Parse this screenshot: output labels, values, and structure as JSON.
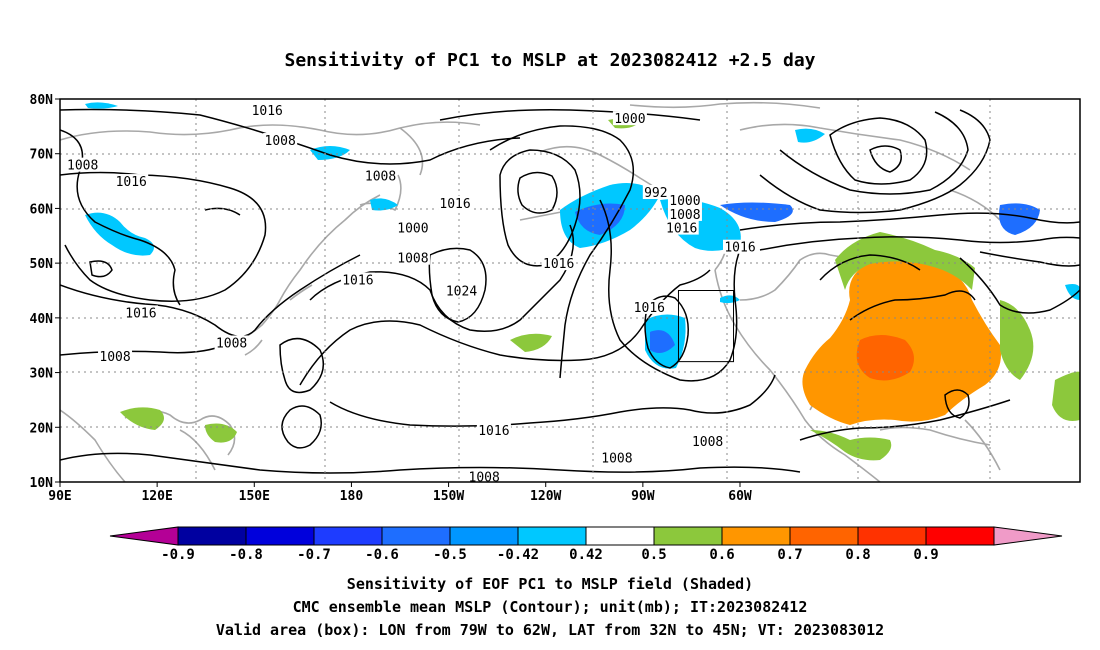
{
  "title": "Sensitivity of PC1 to MSLP at 2023082412 +2.5 day",
  "lon_ticks": [
    "90E",
    "120E",
    "150E",
    "180",
    "150W",
    "120W",
    "90W",
    "60W"
  ],
  "lat_ticks": [
    "80N",
    "70N",
    "60N",
    "50N",
    "40N",
    "30N",
    "20N",
    "10N"
  ],
  "colorbar": {
    "labels": [
      "-0.9",
      "-0.8",
      "-0.7",
      "-0.6",
      "-0.5",
      "-0.42",
      "0.42",
      "0.5",
      "0.6",
      "0.7",
      "0.8",
      "0.9"
    ],
    "colors": [
      "#b40096",
      "#0000a0",
      "#0000dc",
      "#1e3cff",
      "#1e6eff",
      "#0096ff",
      "#00c8ff",
      "#ffffff",
      "#8cc83c",
      "#ff9600",
      "#ff6400",
      "#ff3200",
      "#ff0000",
      "#f09bc8"
    ]
  },
  "contour_labels": [
    {
      "text": "1016",
      "lon": 154,
      "lat": 78
    },
    {
      "text": "1000",
      "lon": -94,
      "lat": 76.5
    },
    {
      "text": "1008",
      "lon": 158,
      "lat": 72.5
    },
    {
      "text": "1008",
      "lon": 97,
      "lat": 68
    },
    {
      "text": "1008",
      "lon": -171,
      "lat": 66
    },
    {
      "text": "1016",
      "lon": 112,
      "lat": 65
    },
    {
      "text": "992",
      "lon": -86,
      "lat": 63
    },
    {
      "text": "1000",
      "lon": -77,
      "lat": 61.5
    },
    {
      "text": "1008",
      "lon": -77,
      "lat": 59
    },
    {
      "text": "1016",
      "lon": -148,
      "lat": 61
    },
    {
      "text": "1000",
      "lon": -161,
      "lat": 56.5
    },
    {
      "text": "1016",
      "lon": -78,
      "lat": 56.5
    },
    {
      "text": "1016",
      "lon": -60,
      "lat": 53
    },
    {
      "text": "1008",
      "lon": -161,
      "lat": 51
    },
    {
      "text": "1016",
      "lon": -116,
      "lat": 50
    },
    {
      "text": "1016",
      "lon": -178,
      "lat": 47
    },
    {
      "text": "1024",
      "lon": -146,
      "lat": 45
    },
    {
      "text": "1016",
      "lon": 115,
      "lat": 41
    },
    {
      "text": "1016",
      "lon": -88,
      "lat": 42
    },
    {
      "text": "1008",
      "lon": 143,
      "lat": 35.5
    },
    {
      "text": "1008",
      "lon": 107,
      "lat": 33
    },
    {
      "text": "1016",
      "lon": -136,
      "lat": 19.5
    },
    {
      "text": "1008",
      "lon": -70,
      "lat": 17.5
    },
    {
      "text": "1008",
      "lon": -98,
      "lat": 14.5
    },
    {
      "text": "1008",
      "lon": -139,
      "lat": 11
    }
  ],
  "valid_box": {
    "lon_west": -79,
    "lon_east": -62,
    "lat_south": 32,
    "lat_north": 45
  },
  "caption_lines": [
    "Sensitivity of EOF PC1 to MSLP field (Shaded)",
    "CMC ensemble mean MSLP (Contour); unit(mb); IT:2023082412",
    "Valid area (box): LON from 79W to 62W, LAT from 32N to 45N; VT: 2023083012"
  ]
}
